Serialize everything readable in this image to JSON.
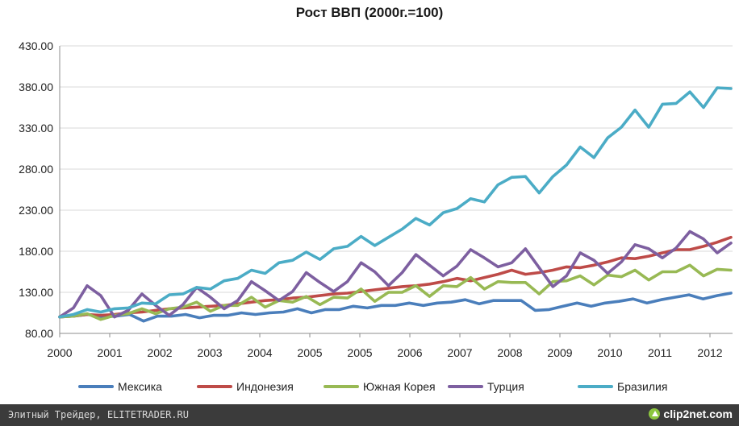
{
  "chart_data": {
    "type": "line",
    "title": "Рост ВВП (2000г.=100)",
    "y_ticks": [
      "430.00",
      "380.00",
      "330.00",
      "280.00",
      "230.00",
      "180.00",
      "130.00",
      "80.00"
    ],
    "ylim": [
      80,
      430
    ],
    "x_tick_labels": [
      "2000",
      "2001",
      "2002",
      "2003",
      "2004",
      "2005",
      "2005",
      "2006",
      "2007",
      "2008",
      "2009",
      "2010",
      "2011",
      "2012"
    ],
    "grid": true,
    "legend_position": "bottom",
    "series": [
      {
        "name": "Мексика",
        "color": "#4a7ebb",
        "values": [
          100,
          101,
          103,
          100,
          101,
          103,
          95,
          101,
          101,
          103,
          99,
          102,
          102,
          105,
          103,
          105,
          106,
          110,
          105,
          109,
          109,
          113,
          111,
          114,
          114,
          117,
          114,
          117,
          118,
          121,
          116,
          120,
          120,
          120,
          108,
          109,
          113,
          117,
          113,
          117,
          119,
          122,
          117,
          121,
          124,
          127,
          122,
          126,
          129
        ]
      },
      {
        "name": "Индонезия",
        "color": "#be4b48",
        "values": [
          100,
          101,
          103,
          102,
          103,
          105,
          106,
          108,
          110,
          111,
          112,
          113,
          114,
          116,
          118,
          120,
          121,
          123,
          124,
          126,
          128,
          129,
          131,
          133,
          135,
          137,
          138,
          140,
          143,
          147,
          144,
          148,
          152,
          157,
          152,
          154,
          157,
          161,
          160,
          163,
          167,
          172,
          171,
          174,
          178,
          182,
          182,
          186,
          191,
          197
        ]
      },
      {
        "name": "Южная Корея",
        "color": "#98b954",
        "values": [
          100,
          101,
          104,
          97,
          102,
          104,
          110,
          104,
          110,
          112,
          118,
          107,
          114,
          114,
          124,
          112,
          120,
          118,
          125,
          115,
          124,
          123,
          134,
          119,
          130,
          130,
          138,
          125,
          138,
          137,
          148,
          134,
          143,
          142,
          142,
          128,
          143,
          144,
          150,
          139,
          151,
          149,
          157,
          145,
          155,
          155,
          163,
          150,
          158,
          157
        ]
      },
      {
        "name": "Турция",
        "color": "#7d5fa0",
        "values": [
          100,
          111,
          138,
          126,
          100,
          108,
          128,
          114,
          102,
          115,
          136,
          124,
          110,
          120,
          143,
          132,
          120,
          131,
          154,
          142,
          131,
          143,
          166,
          155,
          138,
          154,
          176,
          163,
          150,
          162,
          182,
          172,
          161,
          166,
          183,
          160,
          137,
          150,
          178,
          169,
          153,
          167,
          188,
          183,
          172,
          184,
          204,
          195,
          178,
          190
        ]
      },
      {
        "name": "Бразилия",
        "color": "#4bacc6",
        "values": [
          100,
          103,
          109,
          106,
          110,
          111,
          117,
          116,
          127,
          128,
          136,
          134,
          144,
          147,
          157,
          153,
          166,
          169,
          179,
          170,
          183,
          186,
          198,
          187,
          197,
          207,
          220,
          212,
          227,
          232,
          244,
          240,
          261,
          270,
          271,
          251,
          271,
          285,
          307,
          294,
          318,
          331,
          352,
          331,
          359,
          360,
          374,
          355,
          379,
          378
        ]
      }
    ]
  },
  "footer": {
    "source_text": "Элитный Трейдер, ELITETRADER.RU",
    "brand_text": "clip2net.com"
  }
}
